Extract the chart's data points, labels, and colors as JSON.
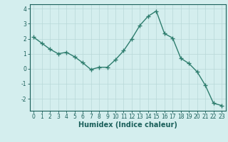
{
  "x": [
    0,
    1,
    2,
    3,
    4,
    5,
    6,
    7,
    8,
    9,
    10,
    11,
    12,
    13,
    14,
    15,
    16,
    17,
    18,
    19,
    20,
    21,
    22,
    23
  ],
  "y": [
    2.1,
    1.7,
    1.3,
    1.0,
    1.1,
    0.8,
    0.4,
    -0.05,
    0.1,
    0.1,
    0.6,
    1.2,
    2.0,
    2.9,
    3.5,
    3.85,
    2.35,
    2.05,
    0.7,
    0.35,
    -0.2,
    -1.1,
    -2.3,
    -2.45
  ],
  "line_color": "#2e7d6e",
  "marker": "+",
  "marker_size": 4,
  "marker_linewidth": 1.0,
  "linewidth": 1.0,
  "background_color": "#d4eeee",
  "grid_color": "#b8d8d8",
  "axis_color": "#1a5f5a",
  "xlabel": "Humidex (Indice chaleur)",
  "ylim": [
    -2.8,
    4.3
  ],
  "xlim": [
    -0.5,
    23.5
  ],
  "yticks": [
    -2,
    -1,
    0,
    1,
    2,
    3,
    4
  ],
  "xticks": [
    0,
    1,
    2,
    3,
    4,
    5,
    6,
    7,
    8,
    9,
    10,
    11,
    12,
    13,
    14,
    15,
    16,
    17,
    18,
    19,
    20,
    21,
    22,
    23
  ],
  "tick_label_fontsize": 5.5,
  "xlabel_fontsize": 7.0,
  "xlabel_fontweight": "bold"
}
